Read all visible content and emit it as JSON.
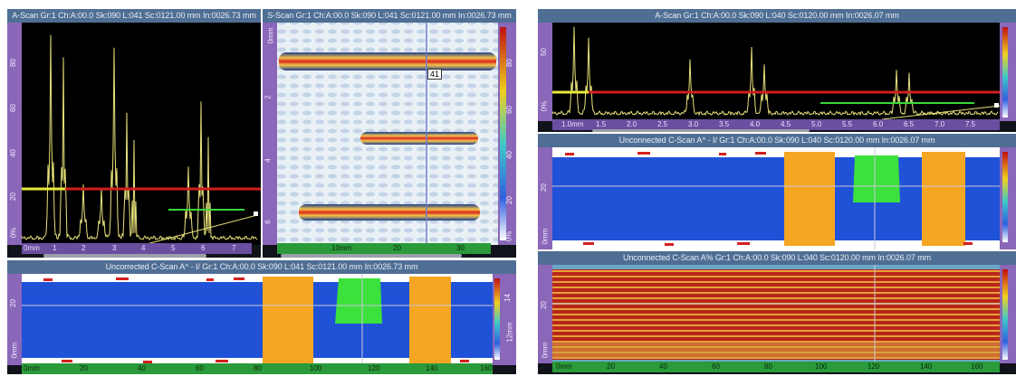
{
  "panels": {
    "left_ascan": {
      "title": "A-Scan Gr:1 Ch:A:00.0 Sk:090 L:041 Sc:0121.00 mm In:0026.73 mm",
      "amp_ticks": [
        "80",
        "60",
        "40",
        "20",
        "0%"
      ],
      "depth_ticks": [
        "0mm",
        "1",
        "2",
        "3",
        "4",
        "5",
        "6",
        "7"
      ]
    },
    "left_sscan": {
      "title": "S-Scan Gr:1 Ch:A:00.0 Sk:090 L:041 Sc:0121.00 mm In:0026.73 mm",
      "depth_ticks": [
        "0mm",
        "2",
        "4",
        "6"
      ],
      "amp_ticks": [
        "80",
        "60",
        "40",
        "20",
        "0%"
      ],
      "scan_ticks": [
        "10mm",
        "20",
        "30"
      ],
      "cursor_value": "41"
    },
    "left_cscan": {
      "title": "Uncorrected C-Scan A^ - I/ Gr:1 Ch:A:00.0 Sk:090 L:041 Sc:0121.00 mm In:0026.73 mm",
      "left_ticks": [
        "20",
        "0mm"
      ],
      "right_ticks": [
        "14",
        "12mm"
      ],
      "scan_ticks": [
        "0mm",
        "20",
        "40",
        "60",
        "80",
        "100",
        "120",
        "140",
        "160"
      ]
    },
    "right_ascan": {
      "title": "A-Scan Gr:1 Ch:A:00.0 Sk:090 L:040 Sc:0120.00 mm In:0026.07 mm",
      "amp_ticks": [
        "50",
        "0%"
      ],
      "depth_ticks": [
        "1.0mm",
        "1.5",
        "2.0",
        "2.5",
        "3.0",
        "3.5",
        "4.0",
        "4.5",
        "5.0",
        "5.5",
        "6.0",
        "6.5",
        "7.0",
        "7.5"
      ]
    },
    "right_cscan1": {
      "title": "Unconnected C-Scan A^ - I/ Gr:1 Ch:A:00.0 Sk:090 L:040 Sc:0120.00 mm In:0026.07 mm",
      "left_ticks": [
        "20",
        "0mm"
      ]
    },
    "right_cscan2": {
      "title": "Unconnected C-Scan A% Gr:1 Ch:A:00.0 Sk:090 L:040 Sc:0120.00 mm In:0026.07 mm",
      "left_ticks": [
        "20",
        "0mm"
      ],
      "scan_ticks": [
        "0mm",
        "20",
        "40",
        "60",
        "80",
        "100",
        "120",
        "140",
        "160"
      ]
    }
  },
  "colors": {
    "waveform": "#e8e27a",
    "gate_red": "#d21e1e",
    "gate_green": "#3ad63a",
    "gate_yellow": "#e8e83a",
    "cscan_blue": "#2052d8",
    "cscan_orange": "#f5a623",
    "cscan_green": "#3ce13c",
    "cursor": "#6f7fd0"
  }
}
